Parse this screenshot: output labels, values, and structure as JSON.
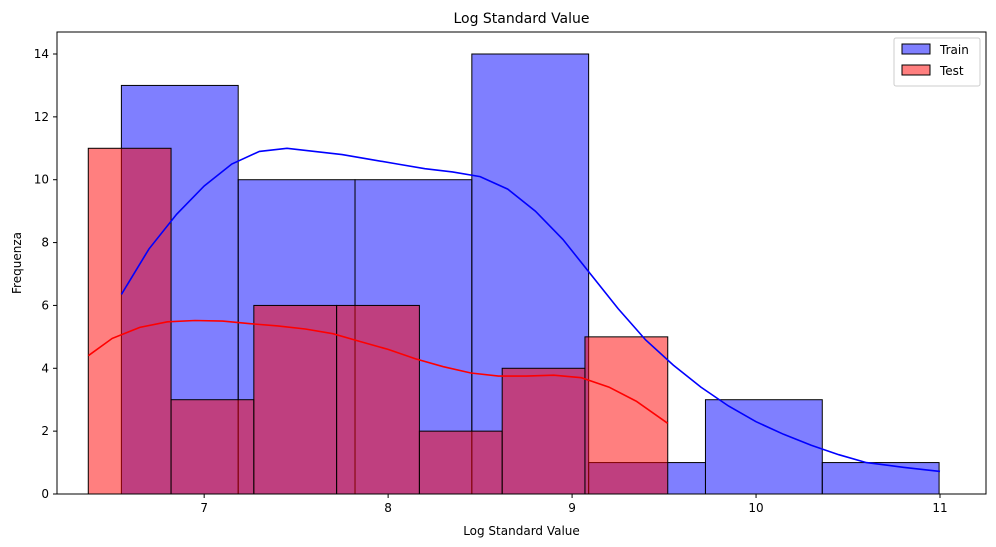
{
  "chart_data": {
    "type": "histogram",
    "title": "Log Standard Value",
    "xlabel": "Log Standard Value",
    "ylabel": "Frequenza",
    "xlim": [
      6.2,
      11.25
    ],
    "ylim": [
      0,
      14.7
    ],
    "xticks": [
      7,
      8,
      9,
      10,
      11
    ],
    "yticks": [
      0,
      2,
      4,
      6,
      8,
      10,
      12,
      14
    ],
    "legend_position": "top-right",
    "series": [
      {
        "name": "Train",
        "color": "#0000ff",
        "opacity": 0.5,
        "bins": [
          {
            "x0": 6.55,
            "x1": 7.185,
            "count": 13
          },
          {
            "x0": 7.185,
            "x1": 7.82,
            "count": 10
          },
          {
            "x0": 7.82,
            "x1": 8.455,
            "count": 10
          },
          {
            "x0": 8.455,
            "x1": 9.09,
            "count": 14
          },
          {
            "x0": 9.09,
            "x1": 9.725,
            "count": 1
          },
          {
            "x0": 9.725,
            "x1": 10.36,
            "count": 3
          },
          {
            "x0": 10.36,
            "x1": 10.995,
            "count": 1
          }
        ],
        "kde": [
          [
            6.55,
            6.35
          ],
          [
            6.7,
            7.8
          ],
          [
            6.85,
            8.9
          ],
          [
            7.0,
            9.8
          ],
          [
            7.15,
            10.5
          ],
          [
            7.3,
            10.9
          ],
          [
            7.45,
            11.0
          ],
          [
            7.6,
            10.9
          ],
          [
            7.75,
            10.8
          ],
          [
            7.9,
            10.65
          ],
          [
            8.05,
            10.5
          ],
          [
            8.2,
            10.35
          ],
          [
            8.35,
            10.25
          ],
          [
            8.5,
            10.1
          ],
          [
            8.65,
            9.7
          ],
          [
            8.8,
            9.0
          ],
          [
            8.95,
            8.1
          ],
          [
            9.1,
            7.0
          ],
          [
            9.25,
            5.9
          ],
          [
            9.4,
            4.9
          ],
          [
            9.55,
            4.1
          ],
          [
            9.7,
            3.4
          ],
          [
            9.85,
            2.8
          ],
          [
            10.0,
            2.3
          ],
          [
            10.15,
            1.9
          ],
          [
            10.3,
            1.55
          ],
          [
            10.45,
            1.25
          ],
          [
            10.6,
            1.0
          ],
          [
            10.8,
            0.85
          ],
          [
            11.0,
            0.72
          ]
        ]
      },
      {
        "name": "Test",
        "color": "#ff0000",
        "opacity": 0.5,
        "bins": [
          {
            "x0": 6.37,
            "x1": 6.82,
            "count": 11
          },
          {
            "x0": 6.82,
            "x1": 7.27,
            "count": 3
          },
          {
            "x0": 7.27,
            "x1": 7.72,
            "count": 6
          },
          {
            "x0": 7.72,
            "x1": 8.17,
            "count": 6
          },
          {
            "x0": 8.17,
            "x1": 8.62,
            "count": 2
          },
          {
            "x0": 8.62,
            "x1": 9.07,
            "count": 4
          },
          {
            "x0": 9.07,
            "x1": 9.52,
            "count": 5
          }
        ],
        "kde": [
          [
            6.37,
            4.4
          ],
          [
            6.5,
            4.95
          ],
          [
            6.65,
            5.3
          ],
          [
            6.8,
            5.48
          ],
          [
            6.95,
            5.52
          ],
          [
            7.1,
            5.5
          ],
          [
            7.25,
            5.42
          ],
          [
            7.4,
            5.35
          ],
          [
            7.55,
            5.25
          ],
          [
            7.7,
            5.1
          ],
          [
            7.85,
            4.85
          ],
          [
            8.0,
            4.6
          ],
          [
            8.15,
            4.3
          ],
          [
            8.3,
            4.05
          ],
          [
            8.45,
            3.85
          ],
          [
            8.6,
            3.75
          ],
          [
            8.75,
            3.75
          ],
          [
            8.9,
            3.78
          ],
          [
            9.05,
            3.7
          ],
          [
            9.2,
            3.4
          ],
          [
            9.35,
            2.95
          ],
          [
            9.52,
            2.25
          ]
        ]
      }
    ]
  }
}
